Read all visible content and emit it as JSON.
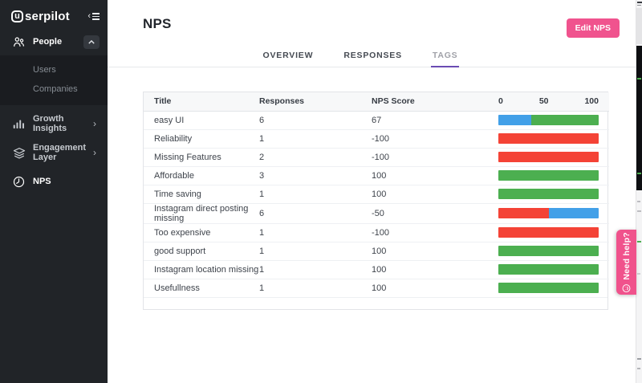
{
  "sidebar": {
    "logo_badge": "u",
    "logo_text": "serpilot",
    "items": [
      {
        "label": "People"
      },
      {
        "label": "Users"
      },
      {
        "label": "Companies"
      },
      {
        "label": "Growth Insights"
      },
      {
        "label": "Engagement Layer"
      },
      {
        "label": "NPS"
      }
    ]
  },
  "header": {
    "title": "NPS",
    "edit_button": "Edit NPS"
  },
  "tabs": [
    {
      "label": "OVERVIEW",
      "active": false
    },
    {
      "label": "RESPONSES",
      "active": false
    },
    {
      "label": "TAGS",
      "active": true
    }
  ],
  "table": {
    "columns": [
      "Title",
      "Responses",
      "NPS Score"
    ],
    "scale_labels": [
      "0",
      "50",
      "100"
    ],
    "rows": [
      {
        "title": "easy UI",
        "responses": "6",
        "score": "67",
        "bar": [
          {
            "c": "passive",
            "w": 33
          },
          {
            "c": "promoter",
            "w": 67
          }
        ]
      },
      {
        "title": "Reliability",
        "responses": "1",
        "score": "-100",
        "bar": [
          {
            "c": "detractor",
            "w": 100
          }
        ]
      },
      {
        "title": "Missing Features",
        "responses": "2",
        "score": "-100",
        "bar": [
          {
            "c": "detractor",
            "w": 100
          }
        ]
      },
      {
        "title": "Affordable",
        "responses": "3",
        "score": "100",
        "bar": [
          {
            "c": "promoter",
            "w": 100
          }
        ]
      },
      {
        "title": "Time saving",
        "responses": "1",
        "score": "100",
        "bar": [
          {
            "c": "promoter",
            "w": 100
          }
        ]
      },
      {
        "title": "Instagram direct posting missing",
        "responses": "6",
        "score": "-50",
        "bar": [
          {
            "c": "detractor",
            "w": 50
          },
          {
            "c": "passive",
            "w": 50
          }
        ]
      },
      {
        "title": "Too expensive",
        "responses": "1",
        "score": "-100",
        "bar": [
          {
            "c": "detractor",
            "w": 100
          }
        ]
      },
      {
        "title": "good support",
        "responses": "1",
        "score": "100",
        "bar": [
          {
            "c": "promoter",
            "w": 100
          }
        ]
      },
      {
        "title": "Instagram location missing",
        "responses": "1",
        "score": "100",
        "bar": [
          {
            "c": "promoter",
            "w": 100
          }
        ]
      },
      {
        "title": "Usefullness",
        "responses": "1",
        "score": "100",
        "bar": [
          {
            "c": "promoter",
            "w": 100
          }
        ]
      }
    ]
  },
  "chart_data": {
    "type": "bar",
    "orientation": "horizontal-stacked",
    "categories": [
      "easy UI",
      "Reliability",
      "Missing Features",
      "Affordable",
      "Time saving",
      "Instagram direct posting missing",
      "Too expensive",
      "good support",
      "Instagram location missing",
      "Usefullness"
    ],
    "series": [
      {
        "name": "detractors_pct",
        "values": [
          0,
          100,
          100,
          0,
          0,
          50,
          100,
          0,
          0,
          0
        ]
      },
      {
        "name": "passives_pct",
        "values": [
          33,
          0,
          0,
          0,
          0,
          50,
          0,
          0,
          0,
          0
        ]
      },
      {
        "name": "promoters_pct",
        "values": [
          67,
          0,
          0,
          100,
          100,
          0,
          0,
          100,
          100,
          100
        ]
      }
    ],
    "nps_scores": [
      67,
      -100,
      -100,
      100,
      100,
      -50,
      -100,
      100,
      100,
      100
    ],
    "responses": [
      6,
      1,
      2,
      3,
      1,
      6,
      1,
      1,
      1,
      1
    ],
    "xlabel": "",
    "ylabel": "",
    "xlim": [
      0,
      100
    ],
    "axis_ticks": [
      "0",
      "50",
      "100"
    ],
    "grid": false,
    "legend": false
  },
  "help_tab": {
    "label": "Need help?"
  },
  "colors": {
    "detractor": "#f44336",
    "passive": "#42a0e8",
    "promoter": "#4caf50",
    "accent_pink": "#f0538e",
    "tab_underline_purple": "#6a4cb3",
    "sidebar_bg": "#212428"
  }
}
